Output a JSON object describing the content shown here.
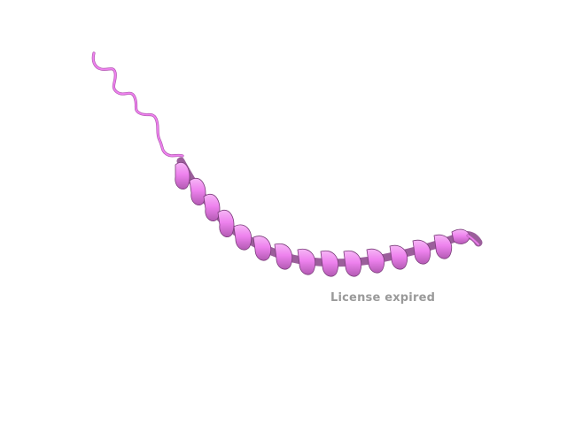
{
  "watermark": {
    "text": "License expired",
    "color": "#9a9a9a"
  },
  "structure": {
    "style": "cartoon",
    "secondary_structure": [
      "coil",
      "alpha-helix"
    ],
    "color_light": "#ee82ee",
    "color_mid": "#d26bd2",
    "color_dark": "#7a3c7a"
  }
}
